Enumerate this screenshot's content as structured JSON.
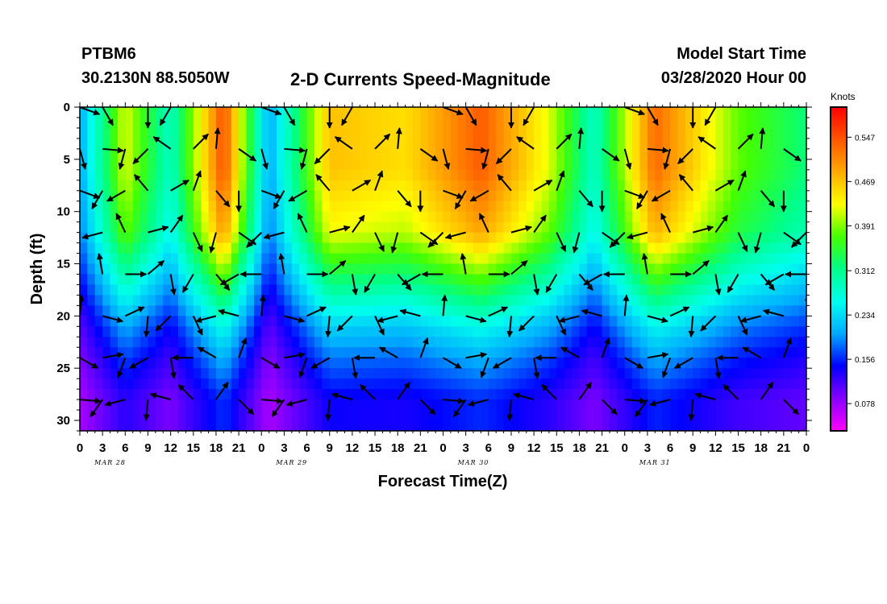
{
  "header": {
    "station": "PTBM6",
    "coordinates": "30.2130N 88.5050W",
    "title": "2-D Currents Speed-Magnitude",
    "model_start_label": "Model Start Time",
    "model_start_value": "03/28/2020 Hour 00"
  },
  "chart_data": {
    "type": "heatmap",
    "title": "2-D Currents Speed-Magnitude",
    "xlabel": "Forecast Time(Z)",
    "ylabel": "Depth (ft)",
    "x_tick_labels": [
      "0",
      "3",
      "6",
      "9",
      "12",
      "15",
      "18",
      "21",
      "0",
      "3",
      "6",
      "9",
      "12",
      "15",
      "18",
      "21",
      "0",
      "3",
      "6",
      "9",
      "12",
      "15",
      "18",
      "21",
      "0",
      "3",
      "6",
      "9",
      "12",
      "15",
      "18",
      "21",
      "0"
    ],
    "date_labels": [
      {
        "text": "MAR 28",
        "hour": 4
      },
      {
        "text": "MAR 29",
        "hour": 28
      },
      {
        "text": "MAR 30",
        "hour": 52
      },
      {
        "text": "MAR 31",
        "hour": 76
      }
    ],
    "x_range_hours": [
      0,
      96
    ],
    "y_range_ft": [
      0,
      31
    ],
    "y_ticks": [
      0,
      5,
      10,
      15,
      20,
      25,
      30
    ],
    "colorbar": {
      "units": "Knots",
      "tick_values": [
        "0.547",
        "0.469",
        "0.391",
        "0.312",
        "0.234",
        "0.156",
        "0.078"
      ],
      "range": [
        0.03,
        0.6
      ],
      "colors": [
        "#ff00ff",
        "#8800ff",
        "#0000ff",
        "#00aaff",
        "#00ffee",
        "#00ff88",
        "#44ff00",
        "#ffff00",
        "#ffaa00",
        "#ff5500",
        "#ff0000"
      ]
    },
    "speed_time_profile": [
      0.2,
      0.42,
      0.28,
      0.55,
      0.2,
      0.47,
      0.45,
      0.54,
      0.42,
      0.28,
      0.53,
      0.38,
      0.32
    ],
    "speed_time_profile_hours": [
      0,
      6,
      12,
      19,
      25,
      33,
      43,
      53,
      62,
      68,
      76,
      87,
      96
    ],
    "layer_factor": [
      1.0,
      1.0,
      1.0,
      0.95,
      0.9,
      0.75,
      0.6,
      0.45,
      0.35,
      0.25
    ],
    "layer_depths_ft": [
      0,
      3,
      6,
      9,
      12,
      15,
      18,
      21,
      24,
      28
    ],
    "arrow_depths_ft": [
      0,
      4,
      8,
      12,
      16,
      20,
      24,
      28
    ],
    "arrow_hours": [
      0,
      3,
      6,
      9,
      12,
      15,
      18,
      21,
      24,
      27,
      30,
      33,
      36,
      39,
      42,
      45,
      48,
      51,
      54,
      57,
      60,
      63,
      66,
      69,
      72,
      75,
      78,
      81,
      84,
      87,
      90,
      93,
      96
    ],
    "arrow_directions_deg": [
      20,
      60,
      -10,
      90,
      120,
      200,
      300,
      260
    ]
  }
}
